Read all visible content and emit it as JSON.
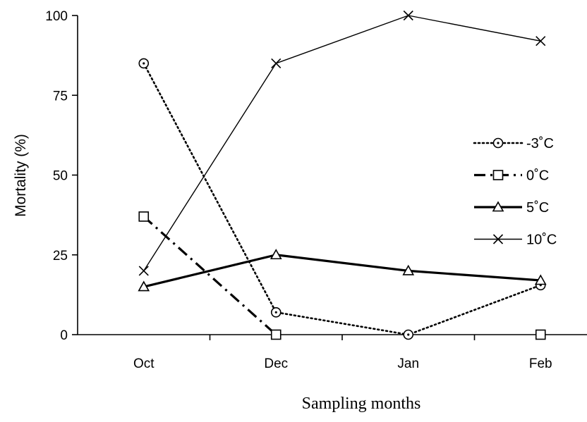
{
  "chart_data": {
    "type": "line",
    "title": "",
    "xlabel": "Sampling months",
    "ylabel": "Mortality (%)",
    "categories": [
      "Oct",
      "Dec",
      "Jan",
      "Feb"
    ],
    "ylim": [
      0,
      100
    ],
    "yticks": [
      0,
      25,
      50,
      75,
      100
    ],
    "grid": false,
    "legend_position": "right",
    "series": [
      {
        "name": "-3˚C",
        "values": [
          85,
          7,
          0,
          15.5
        ],
        "marker": "circle",
        "line_style": "dotted",
        "color": "#000000"
      },
      {
        "name": "0˚C",
        "values": [
          37,
          0,
          null,
          0
        ],
        "marker": "square",
        "line_style": "dash-dot",
        "color": "#000000"
      },
      {
        "name": "5˚C",
        "values": [
          15,
          25,
          20,
          17
        ],
        "marker": "triangle",
        "line_style": "solid-thick",
        "color": "#000000"
      },
      {
        "name": "10˚C",
        "values": [
          20,
          85,
          100,
          92
        ],
        "marker": "x",
        "line_style": "solid-thin",
        "color": "#000000"
      }
    ]
  }
}
